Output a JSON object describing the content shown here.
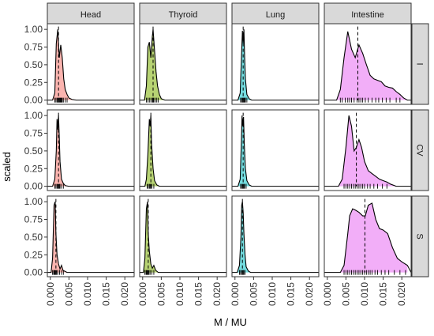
{
  "chart_data": {
    "type": "density-facet-grid",
    "xlabel": "M / MU",
    "ylabel": "scaled",
    "columns": [
      "Head",
      "Thyroid",
      "Lung",
      "Intestine"
    ],
    "rows": [
      "I",
      "CV",
      "S"
    ],
    "x_ticks": [
      0.0,
      0.005,
      0.01,
      0.015,
      0.02
    ],
    "x_tick_labels": [
      "0.000",
      "0.005",
      "0.010",
      "0.015",
      "0.020"
    ],
    "y_ticks": [
      0,
      0.25,
      0.5,
      0.75,
      1.0
    ],
    "y_tick_labels": [
      "0.00",
      "0.25",
      "0.50",
      "0.75",
      "1.00"
    ],
    "xlim": [
      -0.0008,
      0.0225
    ],
    "ylim": [
      -0.06,
      1.08
    ],
    "grid": false,
    "colors": {
      "Head": "#F8766D",
      "Thyroid": "#7CAE00",
      "Lung": "#00BFC4",
      "Intestine": "#E76BF3"
    },
    "panels": [
      [
        {
          "col": "Head",
          "row": "I",
          "median": 0.0022,
          "x": [
            0.0006,
            0.0012,
            0.0016,
            0.002,
            0.0024,
            0.0028,
            0.0032,
            0.0036,
            0.004,
            0.0045,
            0.005,
            0.0058,
            0.007
          ],
          "y": [
            0,
            0.1,
            0.8,
            1.0,
            0.6,
            0.78,
            0.6,
            0.3,
            0.15,
            0.08,
            0.03,
            0.01,
            0
          ],
          "rug": [
            0.0012,
            0.0015,
            0.0018,
            0.002,
            0.0022,
            0.0024,
            0.0026,
            0.0028,
            0.003,
            0.0032,
            0.0035,
            0.004,
            0.0045
          ]
        },
        {
          "col": "Thyroid",
          "row": "I",
          "median": 0.0028,
          "x": [
            0.0005,
            0.001,
            0.0014,
            0.0018,
            0.0022,
            0.0026,
            0.0028,
            0.0032,
            0.0036,
            0.004,
            0.0045,
            0.005,
            0.006
          ],
          "y": [
            0,
            0.2,
            0.75,
            0.82,
            0.6,
            0.9,
            1.0,
            0.7,
            0.4,
            0.2,
            0.08,
            0.02,
            0
          ],
          "rug": [
            0.001,
            0.0014,
            0.0018,
            0.0022,
            0.0026,
            0.0028,
            0.003,
            0.0034,
            0.0038,
            0.0042
          ]
        },
        {
          "col": "Lung",
          "row": "I",
          "median": 0.0022,
          "x": [
            0.0008,
            0.0014,
            0.0018,
            0.002,
            0.0022,
            0.0024,
            0.0026,
            0.0028,
            0.0032,
            0.0038,
            0.0045
          ],
          "y": [
            0,
            0.1,
            0.7,
            0.98,
            0.8,
            1.0,
            0.6,
            0.3,
            0.08,
            0.02,
            0
          ],
          "rug": [
            0.0015,
            0.0018,
            0.002,
            0.0022,
            0.0024,
            0.0026,
            0.0028,
            0.0032
          ]
        },
        {
          "col": "Intestine",
          "row": "I",
          "median": 0.0082,
          "x": [
            0.0025,
            0.0035,
            0.0045,
            0.0055,
            0.0065,
            0.0075,
            0.0085,
            0.0095,
            0.0105,
            0.0115,
            0.0125,
            0.0135,
            0.0145,
            0.0155,
            0.0165,
            0.0175,
            0.0185,
            0.0195,
            0.0205,
            0.0215
          ],
          "y": [
            0,
            0.15,
            0.6,
            0.97,
            0.72,
            0.6,
            0.78,
            0.66,
            0.5,
            0.35,
            0.3,
            0.28,
            0.26,
            0.2,
            0.18,
            0.17,
            0.12,
            0.08,
            0.03,
            0
          ],
          "rug": [
            0.0035,
            0.004,
            0.0048,
            0.0055,
            0.006,
            0.0065,
            0.0072,
            0.008,
            0.0085,
            0.009,
            0.0095,
            0.0102,
            0.011,
            0.012,
            0.013,
            0.0138,
            0.0148,
            0.0158,
            0.0168,
            0.0185,
            0.0195
          ]
        }
      ],
      [
        {
          "col": "Head",
          "row": "CV",
          "median": 0.0022,
          "x": [
            0.0006,
            0.0012,
            0.0016,
            0.0018,
            0.002,
            0.0022,
            0.0024,
            0.0026,
            0.003,
            0.0035,
            0.004,
            0.005
          ],
          "y": [
            0,
            0.1,
            0.5,
            0.95,
            0.8,
            1.0,
            0.7,
            0.35,
            0.1,
            0.04,
            0.01,
            0
          ],
          "rug": [
            0.0012,
            0.0015,
            0.0018,
            0.002,
            0.0022,
            0.0024,
            0.0026,
            0.003,
            0.0035
          ]
        },
        {
          "col": "Thyroid",
          "row": "CV",
          "median": 0.0022,
          "x": [
            0.0006,
            0.001,
            0.0014,
            0.0018,
            0.002,
            0.0022,
            0.0024,
            0.0028,
            0.0032,
            0.0038,
            0.0045
          ],
          "y": [
            0,
            0.1,
            0.45,
            0.95,
            0.85,
            1.0,
            0.6,
            0.25,
            0.08,
            0.02,
            0
          ],
          "rug": [
            0.0012,
            0.0015,
            0.0018,
            0.002,
            0.0022,
            0.0025,
            0.003
          ]
        },
        {
          "col": "Lung",
          "row": "CV",
          "median": 0.0022,
          "x": [
            0.0008,
            0.0014,
            0.0017,
            0.0019,
            0.0021,
            0.0023,
            0.0025,
            0.0028,
            0.0032,
            0.0038,
            0.0045
          ],
          "y": [
            0,
            0.1,
            0.6,
            1.0,
            0.85,
            0.98,
            0.6,
            0.25,
            0.08,
            0.02,
            0
          ],
          "rug": [
            0.0015,
            0.0018,
            0.002,
            0.0022,
            0.0024,
            0.0026,
            0.003
          ]
        },
        {
          "col": "Intestine",
          "row": "CV",
          "median": 0.0078,
          "x": [
            0.003,
            0.004,
            0.005,
            0.0058,
            0.0065,
            0.0072,
            0.0078,
            0.0085,
            0.0092,
            0.01,
            0.011,
            0.012,
            0.013,
            0.014,
            0.015,
            0.016,
            0.017,
            0.0185
          ],
          "y": [
            0,
            0.1,
            0.55,
            1.0,
            0.85,
            0.5,
            0.55,
            0.66,
            0.55,
            0.35,
            0.22,
            0.18,
            0.14,
            0.1,
            0.08,
            0.06,
            0.03,
            0
          ],
          "rug": [
            0.0045,
            0.005,
            0.0055,
            0.006,
            0.0065,
            0.007,
            0.0075,
            0.008,
            0.0085,
            0.009,
            0.0095,
            0.01,
            0.0108,
            0.0115,
            0.0125,
            0.0135,
            0.0148,
            0.016
          ]
        }
      ],
      [
        {
          "col": "Head",
          "row": "S",
          "median": 0.0015,
          "x": [
            0.0002,
            0.0006,
            0.001,
            0.0013,
            0.0015,
            0.0018,
            0.0022,
            0.0026,
            0.003,
            0.0034,
            0.0038,
            0.0045
          ],
          "y": [
            0,
            0.2,
            0.95,
            1.0,
            0.55,
            0.25,
            0.12,
            0.05,
            0.1,
            0.03,
            0.02,
            0
          ],
          "rug": [
            0.0006,
            0.0009,
            0.0011,
            0.0013,
            0.0015,
            0.0017,
            0.002,
            0.0025,
            0.003,
            0.0035
          ]
        },
        {
          "col": "Thyroid",
          "row": "S",
          "median": 0.0015,
          "x": [
            0.0002,
            0.0006,
            0.001,
            0.0013,
            0.0015,
            0.0018,
            0.0022,
            0.0026,
            0.003,
            0.0035,
            0.0042
          ],
          "y": [
            0,
            0.2,
            0.9,
            1.0,
            0.55,
            0.3,
            0.12,
            0.06,
            0.1,
            0.03,
            0
          ],
          "rug": [
            0.0006,
            0.0009,
            0.0011,
            0.0013,
            0.0015,
            0.0017,
            0.002,
            0.0025,
            0.003
          ]
        },
        {
          "col": "Lung",
          "row": "S",
          "median": 0.002,
          "x": [
            0.0006,
            0.0012,
            0.0016,
            0.0018,
            0.002,
            0.0022,
            0.0024,
            0.0027,
            0.003,
            0.0036,
            0.0042
          ],
          "y": [
            0,
            0.1,
            0.5,
            0.95,
            1.0,
            0.85,
            0.55,
            0.25,
            0.08,
            0.02,
            0
          ],
          "rug": [
            0.0012,
            0.0015,
            0.0018,
            0.002,
            0.0022,
            0.0024,
            0.0027
          ]
        },
        {
          "col": "Intestine",
          "row": "S",
          "median": 0.0101,
          "x": [
            0.0035,
            0.0045,
            0.0055,
            0.006,
            0.0068,
            0.0076,
            0.0085,
            0.0095,
            0.0102,
            0.011,
            0.012,
            0.013,
            0.014,
            0.015,
            0.0162,
            0.0175,
            0.0188,
            0.02,
            0.0215
          ],
          "y": [
            0,
            0.1,
            0.55,
            0.8,
            0.9,
            0.88,
            0.85,
            0.8,
            0.8,
            0.95,
            0.98,
            0.75,
            0.62,
            0.6,
            0.55,
            0.35,
            0.2,
            0.15,
            0.1
          ],
          "rug": [
            0.0045,
            0.005,
            0.0055,
            0.006,
            0.0065,
            0.007,
            0.0075,
            0.008,
            0.0085,
            0.009,
            0.0095,
            0.01,
            0.0105,
            0.011,
            0.0115,
            0.012,
            0.0128,
            0.0135,
            0.0145,
            0.0155,
            0.0165,
            0.018,
            0.0195,
            0.021
          ]
        }
      ]
    ]
  }
}
